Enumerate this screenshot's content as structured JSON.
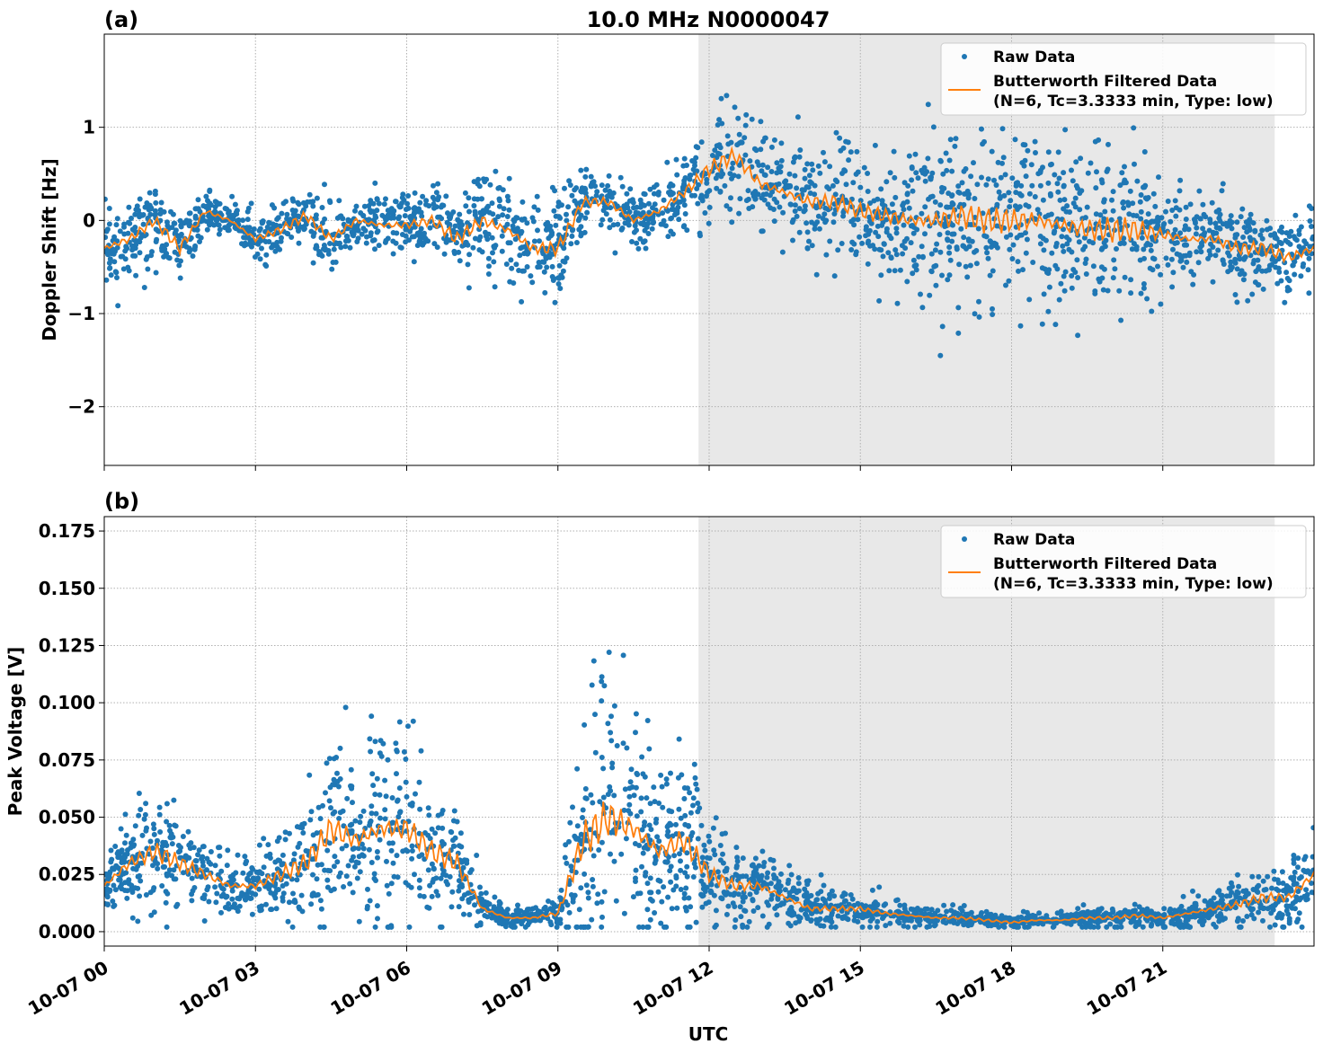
{
  "chart_data": [
    {
      "type": "scatter",
      "panel_label": "(a)",
      "title": "10.0 MHz N0000047",
      "ylabel": "Doppler Shift [Hz]",
      "xlabel": "",
      "x_unit": "hours UTC on 10-07",
      "xlim": [
        0,
        24
      ],
      "ylim": [
        -2.63,
        2.0
      ],
      "yticks": [
        1,
        0,
        -1,
        -2
      ],
      "ytick_labels": [
        "1",
        "0",
        "−1",
        "−2"
      ],
      "grid": true,
      "shaded_span_hours": [
        11.79,
        23.22
      ],
      "legend_placement": "top-right",
      "legend": [
        "Raw Data",
        "Butterworth Filtered Data",
        "(N=6, Tc=3.3333 min, Type: low)"
      ],
      "colors": {
        "raw": "#1f77b4",
        "filtered": "#ff7f0e",
        "shade": "#e8e8e8"
      },
      "x": [
        0,
        0.5,
        1,
        1.5,
        2,
        2.5,
        3,
        3.5,
        4,
        4.5,
        5,
        5.5,
        6,
        6.5,
        7,
        7.5,
        8,
        8.5,
        9,
        9.5,
        10,
        10.5,
        11,
        11.5,
        12,
        12.5,
        13,
        13.5,
        14,
        14.5,
        15,
        15.5,
        16,
        16.5,
        17,
        17.5,
        18,
        18.5,
        19,
        19.5,
        20,
        20.5,
        21,
        21.5,
        22,
        22.5,
        23,
        23.5,
        24
      ],
      "series": [
        {
          "name": "Butterworth Filtered Data",
          "values": [
            -0.3,
            -0.2,
            0.0,
            -0.3,
            0.1,
            0.0,
            -0.2,
            -0.1,
            0.05,
            -0.2,
            0.0,
            -0.05,
            -0.05,
            0.0,
            -0.2,
            0.0,
            -0.1,
            -0.3,
            -0.3,
            0.2,
            0.2,
            0.0,
            0.1,
            0.3,
            0.55,
            0.7,
            0.4,
            0.3,
            0.2,
            0.2,
            0.1,
            0.05,
            0.0,
            0.0,
            0.05,
            0.0,
            0.0,
            0.0,
            -0.05,
            -0.1,
            -0.1,
            -0.1,
            -0.15,
            -0.2,
            -0.2,
            -0.3,
            -0.3,
            -0.4,
            -0.3
          ]
        },
        {
          "name": "Raw Data",
          "spread": [
            0.35,
            0.35,
            0.35,
            0.35,
            0.2,
            0.15,
            0.3,
            0.3,
            0.3,
            0.3,
            0.3,
            0.3,
            0.3,
            0.3,
            0.45,
            0.5,
            0.5,
            0.5,
            0.5,
            0.3,
            0.3,
            0.3,
            0.3,
            0.35,
            0.5,
            0.5,
            0.5,
            0.5,
            0.5,
            0.5,
            0.5,
            0.6,
            0.8,
            0.8,
            0.8,
            0.8,
            0.85,
            0.85,
            0.8,
            0.8,
            0.8,
            0.7,
            0.5,
            0.4,
            0.4,
            0.4,
            0.4,
            0.4,
            0.4
          ]
        }
      ]
    },
    {
      "type": "scatter",
      "panel_label": "(b)",
      "title": "",
      "ylabel": "Peak Voltage [V]",
      "xlabel": "UTC",
      "x_unit": "hours UTC on 10-07",
      "xlim": [
        0,
        24
      ],
      "ylim": [
        -0.0063,
        0.1813
      ],
      "yticks": [
        0,
        0.025,
        0.05,
        0.075,
        0.1,
        0.125,
        0.15,
        0.175
      ],
      "ytick_labels": [
        "0.000",
        "0.025",
        "0.050",
        "0.075",
        "0.100",
        "0.125",
        "0.150",
        "0.175"
      ],
      "xticks": [
        0,
        3,
        6,
        9,
        12,
        15,
        18,
        21
      ],
      "xtick_labels": [
        "10-07 00",
        "10-07 03",
        "10-07 06",
        "10-07 09",
        "10-07 12",
        "10-07 15",
        "10-07 18",
        "10-07 21"
      ],
      "grid": true,
      "shaded_span_hours": [
        11.79,
        23.22
      ],
      "legend_placement": "top-right",
      "legend": [
        "Raw Data",
        "Butterworth Filtered Data",
        "(N=6, Tc=3.3333 min, Type: low)"
      ],
      "colors": {
        "raw": "#1f77b4",
        "filtered": "#ff7f0e",
        "shade": "#e8e8e8"
      },
      "x": [
        0,
        0.5,
        1,
        1.5,
        2,
        2.5,
        3,
        3.5,
        4,
        4.5,
        5,
        5.5,
        6,
        6.5,
        7,
        7.5,
        8,
        8.5,
        9,
        9.5,
        10,
        10.5,
        11,
        11.5,
        12,
        12.5,
        13,
        13.5,
        14,
        14.5,
        15,
        15.5,
        16,
        16.5,
        17,
        17.5,
        18,
        18.5,
        19,
        19.5,
        20,
        20.5,
        21,
        21.5,
        22,
        22.5,
        23,
        23.5,
        24
      ],
      "series": [
        {
          "name": "Butterworth Filtered Data",
          "values": [
            0.02,
            0.03,
            0.035,
            0.03,
            0.025,
            0.02,
            0.02,
            0.025,
            0.03,
            0.045,
            0.04,
            0.045,
            0.045,
            0.035,
            0.03,
            0.01,
            0.006,
            0.006,
            0.008,
            0.04,
            0.05,
            0.045,
            0.035,
            0.04,
            0.025,
            0.02,
            0.02,
            0.015,
            0.01,
            0.01,
            0.01,
            0.008,
            0.007,
            0.006,
            0.006,
            0.005,
            0.004,
            0.005,
            0.005,
            0.006,
            0.006,
            0.007,
            0.006,
            0.008,
            0.01,
            0.012,
            0.015,
            0.015,
            0.025
          ]
        },
        {
          "name": "Raw Data",
          "spread": [
            0.012,
            0.02,
            0.025,
            0.02,
            0.015,
            0.012,
            0.015,
            0.02,
            0.025,
            0.04,
            0.035,
            0.045,
            0.04,
            0.03,
            0.025,
            0.006,
            0.004,
            0.004,
            0.006,
            0.045,
            0.06,
            0.05,
            0.035,
            0.04,
            0.02,
            0.015,
            0.015,
            0.012,
            0.008,
            0.007,
            0.006,
            0.005,
            0.004,
            0.004,
            0.004,
            0.003,
            0.003,
            0.003,
            0.003,
            0.004,
            0.004,
            0.005,
            0.004,
            0.006,
            0.007,
            0.009,
            0.012,
            0.012,
            0.018
          ]
        }
      ]
    }
  ]
}
